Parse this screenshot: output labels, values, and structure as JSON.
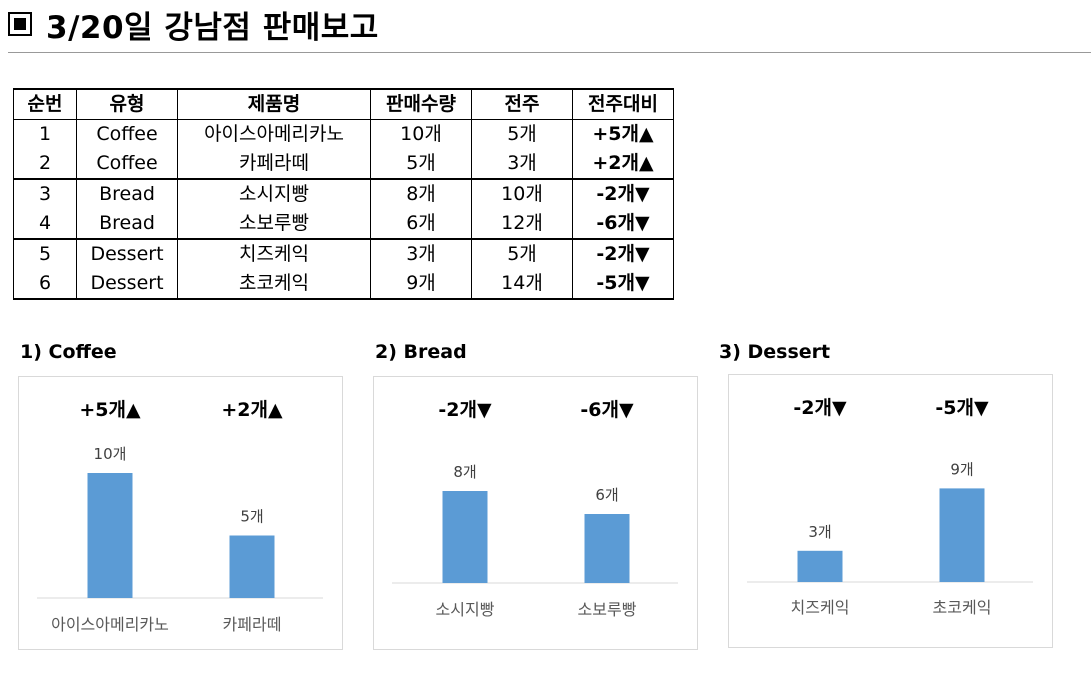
{
  "header": {
    "title": "3/20일 강남점 판매보고"
  },
  "table": {
    "headers": [
      "순번",
      "유형",
      "제품명",
      "판매수량",
      "전주",
      "전주대비"
    ],
    "rows": [
      [
        "1",
        "Coffee",
        "아이스아메리카노",
        "10개",
        "5개",
        "+5개▲"
      ],
      [
        "2",
        "Coffee",
        "카페라떼",
        "5개",
        "3개",
        "+2개▲"
      ],
      [
        "3",
        "Bread",
        "소시지빵",
        "8개",
        "10개",
        "-2개▼"
      ],
      [
        "4",
        "Bread",
        "소보루빵",
        "6개",
        "12개",
        "-6개▼"
      ],
      [
        "5",
        "Dessert",
        "치즈케익",
        "3개",
        "5개",
        "-2개▼"
      ],
      [
        "6",
        "Dessert",
        "초코케익",
        "9개",
        "14개",
        "-5개▼"
      ]
    ]
  },
  "chart_data": [
    {
      "type": "bar",
      "title": "1) Coffee",
      "categories": [
        "아이스아메리카노",
        "카페라떼"
      ],
      "values": [
        10,
        5
      ],
      "value_labels": [
        "10개",
        "5개"
      ],
      "change_labels": [
        "+5개▲",
        "+2개▲"
      ],
      "bar_color": "#5b9bd5",
      "ylim": [
        0,
        12
      ]
    },
    {
      "type": "bar",
      "title": "2) Bread",
      "categories": [
        "소시지빵",
        "소보루빵"
      ],
      "values": [
        8,
        6
      ],
      "value_labels": [
        "8개",
        "6개"
      ],
      "change_labels": [
        "-2개▼",
        "-6개▼"
      ],
      "bar_color": "#5b9bd5",
      "ylim": [
        0,
        12
      ]
    },
    {
      "type": "bar",
      "title": "3) Dessert",
      "categories": [
        "치즈케익",
        "초코케익"
      ],
      "values": [
        3,
        9
      ],
      "value_labels": [
        "3개",
        "9개"
      ],
      "change_labels": [
        "-2개▼",
        "-5개▼"
      ],
      "bar_color": "#5b9bd5",
      "ylim": [
        0,
        12
      ]
    }
  ]
}
